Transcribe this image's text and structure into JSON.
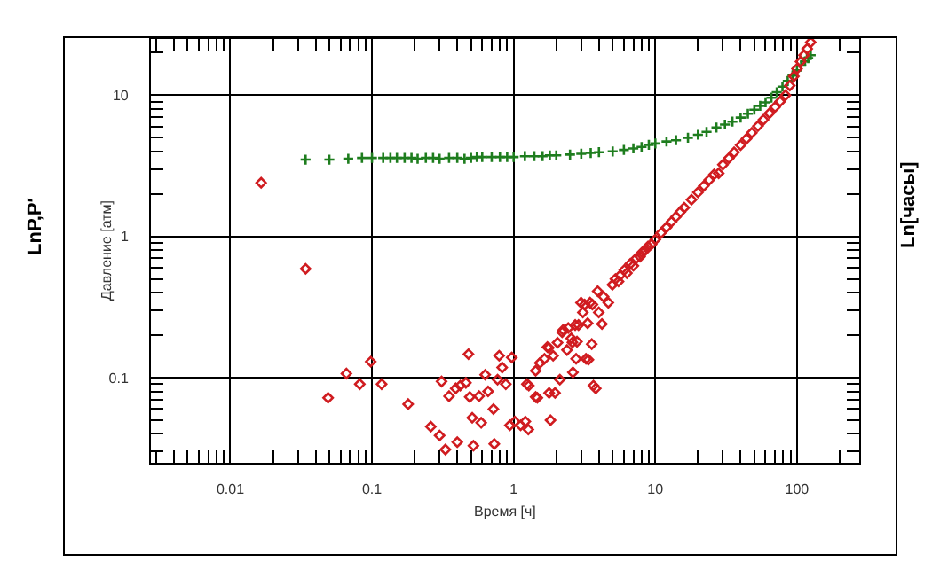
{
  "chart_data": {
    "type": "scatter",
    "xlabel": "Время [ч]",
    "ylabel": "Давление [атм]",
    "annotations": [
      "LnP,P′",
      "Ln[часы]"
    ],
    "log": "xy",
    "grid": true,
    "xlim": [
      0.00275,
      275
    ],
    "ylim": [
      0.025,
      25
    ],
    "xticks": [
      {
        "value": 0.003,
        "label": null
      },
      {
        "value": 0.004,
        "label": null
      },
      {
        "value": 0.005,
        "label": null
      },
      {
        "value": 0.006,
        "label": null
      },
      {
        "value": 0.007,
        "label": null
      },
      {
        "value": 0.008,
        "label": null
      },
      {
        "value": 0.009,
        "label": null
      },
      0.01,
      {
        "value": 0.02,
        "label": null
      },
      {
        "value": 0.03,
        "label": null
      },
      {
        "value": 0.04,
        "label": null
      },
      {
        "value": 0.05,
        "label": null
      },
      {
        "value": 0.06,
        "label": null
      },
      {
        "value": 0.07,
        "label": null
      },
      {
        "value": 0.08,
        "label": null
      },
      {
        "value": 0.09,
        "label": null
      },
      0.1,
      {
        "value": 0.2,
        "label": null
      },
      {
        "value": 0.3,
        "label": null
      },
      {
        "value": 0.4,
        "label": null
      },
      {
        "value": 0.5,
        "label": null
      },
      {
        "value": 0.6,
        "label": null
      },
      {
        "value": 0.7,
        "label": null
      },
      {
        "value": 0.8,
        "label": null
      },
      {
        "value": 0.9,
        "label": null
      },
      1,
      {
        "value": 2,
        "label": null
      },
      {
        "value": 3,
        "label": null
      },
      {
        "value": 4,
        "label": null
      },
      {
        "value": 5,
        "label": null
      },
      {
        "value": 6,
        "label": null
      },
      {
        "value": 7,
        "label": null
      },
      {
        "value": 8,
        "label": null
      },
      {
        "value": 9,
        "label": null
      },
      10,
      {
        "value": 20,
        "label": null
      },
      {
        "value": 30,
        "label": null
      },
      {
        "value": 40,
        "label": null
      },
      {
        "value": 50,
        "label": null
      },
      {
        "value": 60,
        "label": null
      },
      {
        "value": 70,
        "label": null
      },
      {
        "value": 80,
        "label": null
      },
      {
        "value": 90,
        "label": null
      },
      100,
      {
        "value": 200,
        "label": null
      }
    ],
    "yticks": [
      {
        "value": 0.03,
        "label": null
      },
      {
        "value": 0.04,
        "label": null
      },
      {
        "value": 0.05,
        "label": null
      },
      {
        "value": 0.06,
        "label": null
      },
      {
        "value": 0.07,
        "label": null
      },
      {
        "value": 0.08,
        "label": null
      },
      {
        "value": 0.09,
        "label": null
      },
      0.1,
      {
        "value": 0.2,
        "label": null
      },
      {
        "value": 0.3,
        "label": null
      },
      {
        "value": 0.4,
        "label": null
      },
      {
        "value": 0.5,
        "label": null
      },
      {
        "value": 0.6,
        "label": null
      },
      {
        "value": 0.7,
        "label": null
      },
      {
        "value": 0.8,
        "label": null
      },
      {
        "value": 0.9,
        "label": null
      },
      1,
      {
        "value": 2,
        "label": null
      },
      {
        "value": 3,
        "label": null
      },
      {
        "value": 4,
        "label": null
      },
      {
        "value": 5,
        "label": null
      },
      {
        "value": 6,
        "label": null
      },
      {
        "value": 7,
        "label": null
      },
      {
        "value": 8,
        "label": null
      },
      {
        "value": 9,
        "label": null
      },
      10,
      {
        "value": 20,
        "label": null
      }
    ],
    "series": [
      {
        "color": "#1e7d1e",
        "marker": "cross",
        "x": [
          0.034,
          0.05,
          0.068,
          0.085,
          0.1,
          0.12,
          0.135,
          0.15,
          0.17,
          0.19,
          0.21,
          0.24,
          0.27,
          0.3,
          0.35,
          0.4,
          0.45,
          0.5,
          0.55,
          0.6,
          0.7,
          0.8,
          0.9,
          1.0,
          1.2,
          1.4,
          1.6,
          1.8,
          2.0,
          2.5,
          3.0,
          3.5,
          4.0,
          5.0,
          6.0,
          7.0,
          8.0,
          9,
          10,
          12,
          14,
          17,
          20,
          23,
          27,
          31,
          35,
          40,
          45,
          50,
          55,
          60,
          66,
          72,
          79,
          86,
          93,
          100,
          107,
          114,
          120,
          125
        ],
        "values": [
          3.5,
          3.5,
          3.55,
          3.6,
          3.6,
          3.6,
          3.6,
          3.6,
          3.6,
          3.6,
          3.55,
          3.6,
          3.6,
          3.55,
          3.6,
          3.6,
          3.55,
          3.6,
          3.65,
          3.65,
          3.65,
          3.65,
          3.65,
          3.65,
          3.7,
          3.7,
          3.7,
          3.75,
          3.75,
          3.8,
          3.85,
          3.9,
          3.95,
          4.0,
          4.1,
          4.2,
          4.3,
          4.45,
          4.55,
          4.7,
          4.8,
          5.0,
          5.25,
          5.5,
          5.9,
          6.2,
          6.5,
          6.95,
          7.4,
          7.9,
          8.4,
          8.9,
          9.6,
          10.5,
          11.5,
          12.6,
          13.8,
          15,
          16.2,
          17.4,
          18.3,
          19.2
        ]
      },
      {
        "color": "#d01c20",
        "marker": "diamond",
        "x": [
          0.0165,
          0.034,
          0.049,
          0.066,
          0.082,
          0.098,
          0.117,
          0.18,
          0.26,
          0.3,
          0.31,
          0.33,
          0.35,
          0.39,
          0.4,
          0.42,
          0.46,
          0.48,
          0.49,
          0.51,
          0.52,
          0.57,
          0.59,
          0.63,
          0.66,
          0.72,
          0.73,
          0.77,
          0.79,
          0.83,
          0.88,
          0.94,
          0.97,
          1.02,
          1.12,
          1.21,
          1.24,
          1.27,
          1.28,
          1.43,
          1.43,
          1.47,
          1.53,
          1.65,
          1.73,
          1.77,
          1.78,
          1.82,
          1.9,
          1.96,
          2.04,
          2.12,
          2.2,
          2.24,
          2.38,
          2.43,
          2.55,
          2.6,
          2.62,
          2.72,
          2.76,
          2.8,
          2.87,
          2.99,
          3.08,
          3.17,
          3.24,
          3.33,
          3.37,
          3.46,
          3.56,
          3.6,
          3.66,
          3.8,
          3.92,
          3.99,
          4.2,
          4.31,
          4.66,
          4.98,
          5.23,
          5.5,
          5.65,
          6.05,
          6.3,
          6.66,
          7.0,
          7.33,
          7.8,
          8.07,
          8.5,
          8.89,
          9.4,
          10,
          11,
          12,
          13,
          14,
          15,
          16,
          18,
          20,
          22,
          24,
          26,
          28,
          30,
          33,
          36,
          40,
          44,
          48,
          53,
          58,
          64,
          70,
          76,
          83,
          89,
          95,
          100,
          106,
          112,
          118,
          125
        ],
        "values": [
          2.4,
          0.59,
          0.072,
          0.107,
          0.09,
          0.13,
          0.09,
          0.065,
          0.045,
          0.039,
          0.094,
          0.031,
          0.074,
          0.084,
          0.035,
          0.088,
          0.092,
          0.147,
          0.073,
          0.052,
          0.033,
          0.074,
          0.048,
          0.105,
          0.08,
          0.06,
          0.034,
          0.097,
          0.143,
          0.118,
          0.09,
          0.046,
          0.139,
          0.049,
          0.046,
          0.049,
          0.09,
          0.043,
          0.088,
          0.073,
          0.112,
          0.072,
          0.127,
          0.136,
          0.165,
          0.163,
          0.078,
          0.05,
          0.143,
          0.078,
          0.177,
          0.097,
          0.21,
          0.218,
          0.157,
          0.225,
          0.19,
          0.178,
          0.109,
          0.236,
          0.136,
          0.18,
          0.236,
          0.34,
          0.29,
          0.33,
          0.136,
          0.243,
          0.134,
          0.34,
          0.173,
          0.33,
          0.088,
          0.084,
          0.41,
          0.29,
          0.24,
          0.375,
          0.34,
          0.455,
          0.5,
          0.48,
          0.53,
          0.58,
          0.55,
          0.64,
          0.62,
          0.7,
          0.72,
          0.77,
          0.8,
          0.85,
          0.88,
          0.95,
          1.06,
          1.16,
          1.27,
          1.38,
          1.49,
          1.6,
          1.82,
          2.05,
          2.28,
          2.51,
          2.75,
          2.8,
          3.22,
          3.58,
          3.94,
          4.43,
          4.92,
          5.42,
          6.05,
          6.7,
          7.46,
          8.24,
          9.03,
          10,
          11.7,
          13.6,
          15.4,
          17.3,
          19.2,
          21.3,
          23.7
        ]
      }
    ]
  }
}
